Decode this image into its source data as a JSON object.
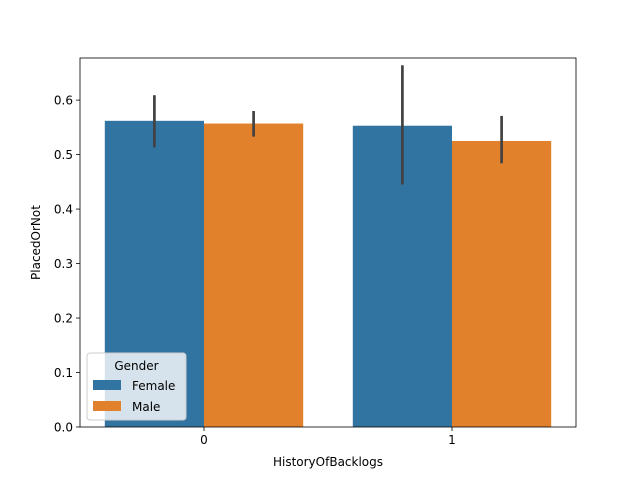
{
  "chart_data": {
    "type": "bar",
    "xlabel": "HistoryOfBacklogs",
    "ylabel": "PlacedOrNot",
    "categories": [
      "0",
      "1"
    ],
    "ylim": [
      0,
      0.6773
    ],
    "yticks": [
      "0.0",
      "0.1",
      "0.2",
      "0.3",
      "0.4",
      "0.5",
      "0.6"
    ],
    "grid": false,
    "series": [
      {
        "name": "Female",
        "color": "#3274a1",
        "values": [
          0.562,
          0.553
        ],
        "ci_low": [
          0.513,
          0.445
        ],
        "ci_high": [
          0.609,
          0.664
        ]
      },
      {
        "name": "Male",
        "color": "#e1812c",
        "values": [
          0.557,
          0.525
        ],
        "ci_low": [
          0.533,
          0.484
        ],
        "ci_high": [
          0.58,
          0.571
        ]
      }
    ],
    "errorbar_color": "#424242",
    "legend": {
      "title": "Gender",
      "placement": "lower-left"
    }
  }
}
